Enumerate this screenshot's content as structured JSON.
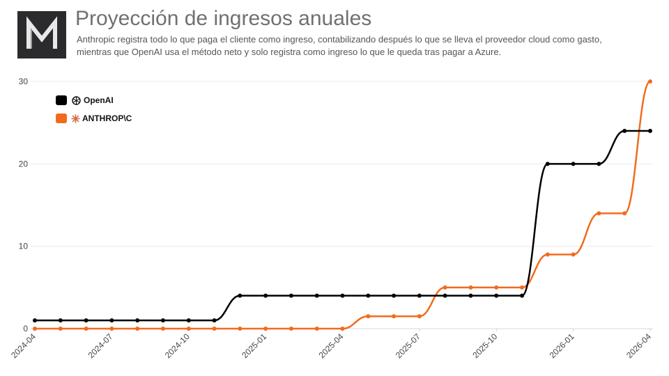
{
  "header": {
    "logo_letter": "M",
    "title": "Proyección de ingresos anuales",
    "subtitle": "Anthropic registra todo lo que paga el cliente como ingreso, contabilizando después lo que se lleva el proveedor cloud como gasto, mientras que OpenAI usa el método neto y solo registra como ingreso lo que le queda tras pagar a Azure."
  },
  "legend": {
    "items": [
      {
        "label": "OpenAI",
        "icon": "openai-logo-icon",
        "color": "#000000"
      },
      {
        "label": "ANTHROP\\C",
        "icon": "anthropic-logo-icon",
        "color": "#f26b1d"
      }
    ],
    "placement": "top-left"
  },
  "chart_data": {
    "type": "line",
    "title": "",
    "xlabel": "",
    "ylabel": "",
    "x": [
      "2024-04",
      "2024-05",
      "2024-06",
      "2024-07",
      "2024-08",
      "2024-09",
      "2024-10",
      "2024-11",
      "2024-12",
      "2025-01",
      "2025-02",
      "2025-03",
      "2025-04",
      "2025-05",
      "2025-06",
      "2025-07",
      "2025-08",
      "2025-09",
      "2025-10",
      "2025-11",
      "2025-12",
      "2026-01",
      "2026-02",
      "2026-03",
      "2026-04"
    ],
    "x_tick_labels": [
      "2024-04",
      "2024-07",
      "2024-10",
      "2025-01",
      "2025-04",
      "2025-07",
      "2025-10",
      "2026-01",
      "2026-04"
    ],
    "y_ticks": [
      0,
      10,
      20,
      30
    ],
    "ylim": [
      0,
      30
    ],
    "grid": true,
    "series": [
      {
        "name": "OpenAI",
        "color": "#000000",
        "values": [
          1,
          1,
          1,
          1,
          1,
          1,
          1,
          1,
          4,
          4,
          4,
          4,
          4,
          4,
          4,
          4,
          4,
          4,
          4,
          4,
          20,
          20,
          20,
          24,
          24
        ]
      },
      {
        "name": "ANTHROP\\C",
        "color": "#f26b1d",
        "values": [
          0,
          0,
          0,
          0,
          0,
          0,
          0,
          0,
          0,
          0,
          0,
          0,
          0,
          1.5,
          1.5,
          1.5,
          5,
          5,
          5,
          5,
          9,
          9,
          14,
          14,
          30
        ]
      }
    ]
  }
}
